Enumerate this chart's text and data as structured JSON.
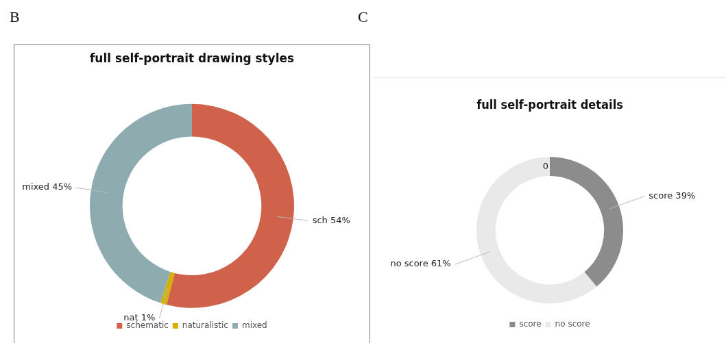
{
  "chart_data": [
    {
      "type": "donut",
      "title": "full self-portrait drawing styles",
      "annotations": [
        "B"
      ],
      "categories": [
        "schematic",
        "naturalistic",
        "mixed"
      ],
      "values": [
        54,
        1,
        45
      ],
      "colors": [
        "#d0614a",
        "#d4b000",
        "#8eabb0"
      ],
      "value_labels": [
        "sch 54%",
        "nat 1%",
        "mixed 45%"
      ],
      "legend": "bottom"
    },
    {
      "type": "donut",
      "title": "full self-portrait details",
      "annotations": [
        "C",
        "0"
      ],
      "categories": [
        "score",
        "no score"
      ],
      "values": [
        39,
        61
      ],
      "colors": [
        "#8c8c8c",
        "#e9e9e9"
      ],
      "value_labels": [
        "score 39%",
        "no score 61%"
      ],
      "legend": "bottom"
    }
  ]
}
